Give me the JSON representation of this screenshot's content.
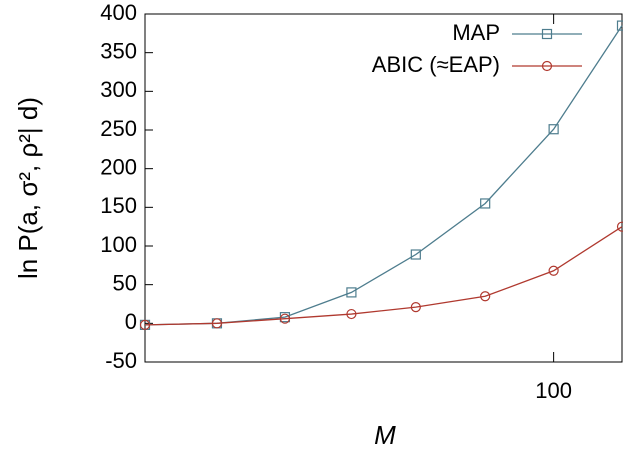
{
  "chart_data": {
    "type": "line",
    "xlabel": "M",
    "ylabel": "ln P(a, σ², ρ²| d)",
    "x": [
      10,
      15,
      22,
      32,
      46,
      68,
      100,
      147
    ],
    "series": [
      {
        "name": "MAP",
        "color": "#4e7d8e",
        "marker": "square",
        "values": [
          -2,
          0,
          8,
          40,
          89,
          155,
          251,
          385
        ]
      },
      {
        "name": "ABIC (≈EAP)",
        "color": "#b0392f",
        "marker": "circle",
        "values": [
          -2,
          0,
          6,
          12,
          21,
          35,
          68,
          125
        ]
      }
    ],
    "xlim": [
      10,
      147
    ],
    "xscale": "log",
    "xticks": [
      100
    ],
    "ylim": [
      -50,
      400
    ],
    "yticks": [
      -50,
      0,
      50,
      100,
      150,
      200,
      250,
      300,
      350,
      400
    ],
    "legend": "upper right"
  }
}
